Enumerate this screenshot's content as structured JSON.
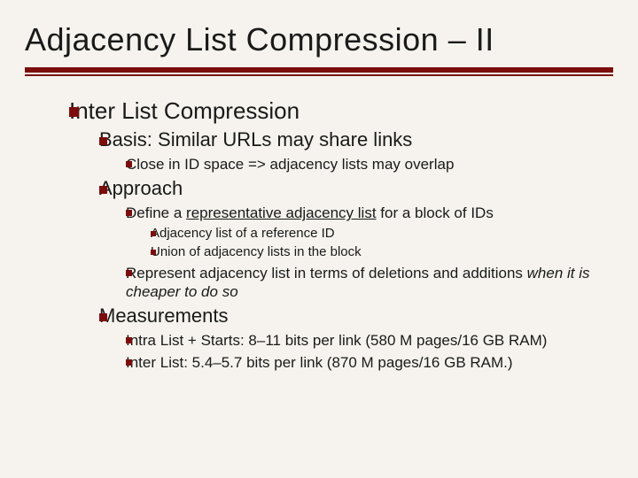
{
  "colors": {
    "background": "#f6f3ee",
    "text": "#1a1a1a",
    "accent": "#7b0d0d"
  },
  "title": "Adjacency List Compression – II",
  "h1": "Inter List Compression",
  "basis": {
    "label": "Basis: Similar URLs may share links",
    "sub": "Close in ID space => adjacency lists may overlap"
  },
  "approach": {
    "label": "Approach",
    "define_pre": "Define a ",
    "define_u": "representative adjacency list",
    "define_post": " for a block of IDs",
    "ref": "Adjacency list of a reference ID",
    "union": "Union of adjacency lists in the block",
    "represent_pre": "Represent adjacency list in terms of deletions and additions ",
    "represent_i": "when it is cheaper to do so"
  },
  "meas": {
    "label": "Measurements",
    "intra": "Intra List + Starts: 8–11 bits per link (580 M pages/16 GB RAM)",
    "inter": "Inter List: 5.4–5.7 bits per link (870 M pages/16 GB RAM.)"
  }
}
